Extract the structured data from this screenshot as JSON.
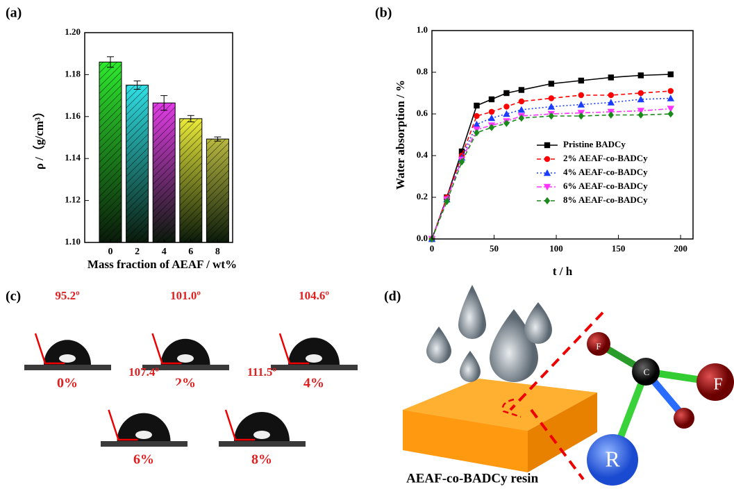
{
  "chart_data": [
    {
      "type": "bar",
      "panel": "(a)",
      "ylabel": "ρ /（g/cm³）",
      "xlabel": "Mass fraction of AEAF / wt%",
      "categories": [
        "0",
        "2",
        "4",
        "6",
        "8"
      ],
      "values": [
        1.186,
        1.175,
        1.1665,
        1.159,
        1.1493
      ],
      "errors": [
        0.0025,
        0.002,
        0.0035,
        0.0015,
        0.001
      ],
      "colors": [
        "#2ee82e",
        "#2fe0e6",
        "#e23ce6",
        "#eaea3a",
        "#b8b840"
      ],
      "ylim": [
        1.1,
        1.2
      ],
      "yticks": [
        {
          "value": 1.1,
          "label": "1.10"
        },
        1.12,
        1.14,
        1.16,
        1.18,
        {
          "value": 1.2,
          "label": "1.20"
        }
      ]
    },
    {
      "type": "line",
      "panel": "(b)",
      "ylabel": "Water absorption / %",
      "xlabel": "t / h",
      "x": [
        0,
        12,
        24,
        36,
        48,
        60,
        72,
        96,
        120,
        144,
        168,
        192
      ],
      "series": [
        {
          "name": "Pristine BADCy",
          "color": "#000000",
          "marker": "square",
          "linestyle": "solid",
          "values": [
            0,
            0.2,
            0.42,
            0.64,
            0.67,
            0.7,
            0.715,
            0.745,
            0.76,
            0.775,
            0.785,
            0.79
          ]
        },
        {
          "name": "2% AEAF-co-BADCy",
          "color": "#ff0000",
          "marker": "circle",
          "linestyle": "dashed",
          "values": [
            0,
            0.2,
            0.4,
            0.59,
            0.61,
            0.635,
            0.66,
            0.675,
            0.69,
            0.69,
            0.7,
            0.71
          ]
        },
        {
          "name": "4% AEAF-co-BADCy",
          "color": "#1a3cff",
          "marker": "triangle-up",
          "linestyle": "dotted",
          "values": [
            0,
            0.19,
            0.39,
            0.55,
            0.58,
            0.6,
            0.62,
            0.635,
            0.645,
            0.655,
            0.67,
            0.675
          ]
        },
        {
          "name": "6% AEAF-co-BADCy",
          "color": "#ff33ff",
          "marker": "triangle-down",
          "linestyle": "dashdot",
          "values": [
            0,
            0.19,
            0.38,
            0.525,
            0.545,
            0.565,
            0.59,
            0.6,
            0.605,
            0.61,
            0.615,
            0.625
          ]
        },
        {
          "name": "8% AEAF-co-BADCy",
          "color": "#1a8a1a",
          "marker": "diamond",
          "linestyle": "dashed",
          "values": [
            0,
            0.18,
            0.37,
            0.51,
            0.535,
            0.555,
            0.58,
            0.59,
            0.59,
            0.595,
            0.595,
            0.6
          ]
        }
      ],
      "xlim": [
        0,
        210
      ],
      "xticks": [
        0,
        50,
        100,
        150,
        200
      ],
      "ylim": [
        0,
        1
      ],
      "yticks": [
        {
          "value": 0,
          "label": "0.0"
        },
        0.2,
        0.4,
        0.6,
        0.8,
        {
          "value": 1,
          "label": "1.0"
        }
      ],
      "legend": "lower right"
    }
  ],
  "contact_angle": {
    "panel": "(c)",
    "samples": [
      {
        "angle": "95.2º",
        "label": "0%"
      },
      {
        "angle": "101.0º",
        "label": "2%"
      },
      {
        "angle": "104.6º",
        "label": "4%"
      },
      {
        "angle": "107.4º",
        "label": "6%"
      },
      {
        "angle": "111.5º",
        "label": "8%"
      }
    ]
  },
  "schematic": {
    "panel": "(d)",
    "atoms": [
      "F",
      "F",
      "C",
      "R"
    ],
    "caption": "AEAF-co-BADCy resin"
  }
}
